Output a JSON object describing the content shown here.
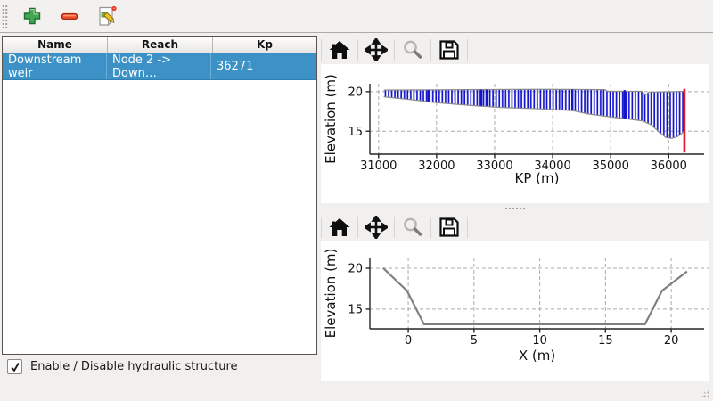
{
  "toolbar": {
    "buttons": [
      {
        "label": "add",
        "icon": "plus-icon"
      },
      {
        "label": "remove",
        "icon": "minus-icon"
      },
      {
        "label": "edit",
        "icon": "edit-icon"
      }
    ]
  },
  "table": {
    "columns": [
      "Name",
      "Reach",
      "Kp"
    ],
    "rows": [
      {
        "name": "Downstream weir",
        "reach": "Node 2 -> Down…",
        "kp": "36271",
        "selected": true
      }
    ],
    "selection_color": "#3c92c6"
  },
  "checkbox": {
    "label": "Enable / Disable hydraulic structure",
    "checked": "checked"
  },
  "plot_toolbar": {
    "icons": [
      {
        "name": "home-icon"
      },
      {
        "name": "pan-icon"
      },
      {
        "name": "zoom-icon",
        "disabled": true
      },
      {
        "name": "save-icon"
      }
    ]
  },
  "colors": {
    "hatch_blue": "#1414cc",
    "profile_gray": "#808080",
    "weir_red": "#e8192c",
    "selection_blue": "#3c92c6"
  },
  "chart_data": [
    {
      "type": "area",
      "title": "",
      "xlabel": "KP (m)",
      "ylabel": "Elevation (m)",
      "xlim": [
        30850,
        36610
      ],
      "ylim": [
        12.1,
        21.0
      ],
      "xticks": [
        31000,
        32000,
        33000,
        34000,
        35000,
        36000
      ],
      "yticks": [
        15,
        20
      ],
      "grid": true,
      "legend": "none",
      "series": [
        {
          "name": "channel-band",
          "style": "hatch_band",
          "color": "#1414cc",
          "edge_color": "#8a8a8a",
          "top": [
            [
              31090,
              20.2
            ],
            [
              32500,
              20.25
            ],
            [
              33800,
              20.3
            ],
            [
              34900,
              20.25
            ],
            [
              34940,
              20.05
            ],
            [
              35540,
              20.05
            ],
            [
              35600,
              19.55
            ],
            [
              35660,
              19.95
            ],
            [
              36100,
              20.0
            ],
            [
              36271,
              20.05
            ]
          ],
          "bottom": [
            [
              31090,
              19.35
            ],
            [
              31600,
              18.95
            ],
            [
              32000,
              18.6
            ],
            [
              32600,
              18.25
            ],
            [
              33100,
              18.0
            ],
            [
              33700,
              17.85
            ],
            [
              34100,
              17.7
            ],
            [
              34350,
              17.6
            ],
            [
              34600,
              17.2
            ],
            [
              35000,
              16.8
            ],
            [
              35300,
              16.55
            ],
            [
              35550,
              16.3
            ],
            [
              35700,
              15.8
            ],
            [
              35850,
              14.8
            ],
            [
              35950,
              14.2
            ],
            [
              36050,
              14.1
            ],
            [
              36150,
              14.3
            ],
            [
              36220,
              14.7
            ],
            [
              36271,
              15.1
            ]
          ]
        },
        {
          "name": "section-markers",
          "style": "vlines",
          "color": "#1414cc",
          "lines": [
            [
              31860,
              18.75,
              20.2
            ],
            [
              32770,
              18.2,
              20.25
            ],
            [
              32860,
              18.2,
              20.25
            ],
            [
              34340,
              17.6,
              20.27
            ],
            [
              35240,
              16.6,
              20.2
            ]
          ]
        },
        {
          "name": "weir-position",
          "style": "vline",
          "color": "#e8192c",
          "x": 36271,
          "y": [
            12.3,
            20.35
          ]
        }
      ]
    },
    {
      "type": "line",
      "title": "",
      "xlabel": "X (m)",
      "ylabel": "Elevation (m)",
      "xlim": [
        -2.92,
        22.5
      ],
      "ylim": [
        12.6,
        21.3
      ],
      "xticks": [
        0,
        5,
        10,
        15,
        20
      ],
      "yticks": [
        15,
        20
      ],
      "grid": true,
      "legend": "none",
      "series": [
        {
          "name": "cross-section",
          "style": "line",
          "color": "#808080",
          "width": 2.2,
          "points": [
            [
              -1.9,
              20.0
            ],
            [
              -0.1,
              17.25
            ],
            [
              1.2,
              13.15
            ],
            [
              18.0,
              13.15
            ],
            [
              19.3,
              17.25
            ],
            [
              21.2,
              19.6
            ]
          ]
        }
      ]
    }
  ]
}
